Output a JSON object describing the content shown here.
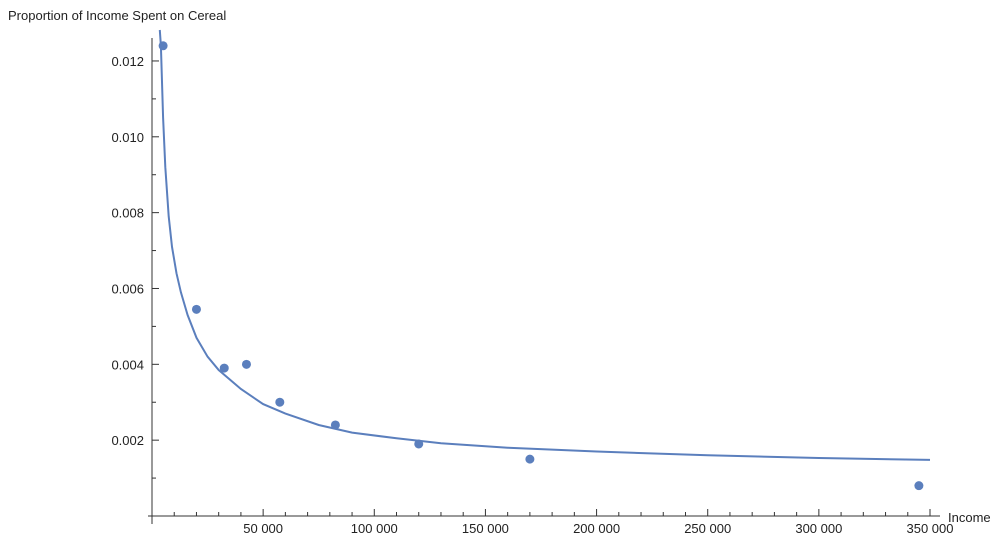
{
  "chart_data": {
    "type": "scatter",
    "title": "",
    "ylabel": "Proportion of Income Spent on Cereal",
    "xlabel": "Income",
    "xlim": [
      0,
      350000
    ],
    "ylim": [
      0,
      0.0125
    ],
    "xticks": [
      50000,
      100000,
      150000,
      200000,
      250000,
      300000,
      350000
    ],
    "xtick_labels": [
      "50 000",
      "100 000",
      "150 000",
      "200 000",
      "250 000",
      "300 000",
      "350 000"
    ],
    "yticks": [
      0.002,
      0.004,
      0.006,
      0.008,
      0.01,
      0.012
    ],
    "ytick_labels": [
      "0.002",
      "0.004",
      "0.006",
      "0.008",
      "0.010",
      "0.012"
    ],
    "points": {
      "x": [
        5000,
        20000,
        32500,
        42500,
        57500,
        82500,
        120000,
        170000,
        345000
      ],
      "y": [
        0.0124,
        0.00545,
        0.0039,
        0.004,
        0.003,
        0.0024,
        0.0019,
        0.0015,
        0.0008
      ]
    },
    "fit_curve": {
      "type": "line",
      "x": [
        3500,
        4000,
        5000,
        6000,
        7500,
        9000,
        11000,
        13000,
        16000,
        20000,
        25000,
        30000,
        35000,
        40000,
        50000,
        60000,
        75000,
        90000,
        110000,
        130000,
        160000,
        200000,
        250000,
        300000,
        350000
      ],
      "y": [
        0.0138,
        0.0124,
        0.0105,
        0.0092,
        0.0079,
        0.0071,
        0.0064,
        0.0059,
        0.0053,
        0.0047,
        0.0042,
        0.00385,
        0.0036,
        0.00335,
        0.00295,
        0.0027,
        0.0024,
        0.0022,
        0.00205,
        0.00192,
        0.0018,
        0.0017,
        0.0016,
        0.00153,
        0.00148
      ]
    },
    "grid": false,
    "colors": {
      "series": "#5b7fbd",
      "axis": "#333333"
    }
  }
}
